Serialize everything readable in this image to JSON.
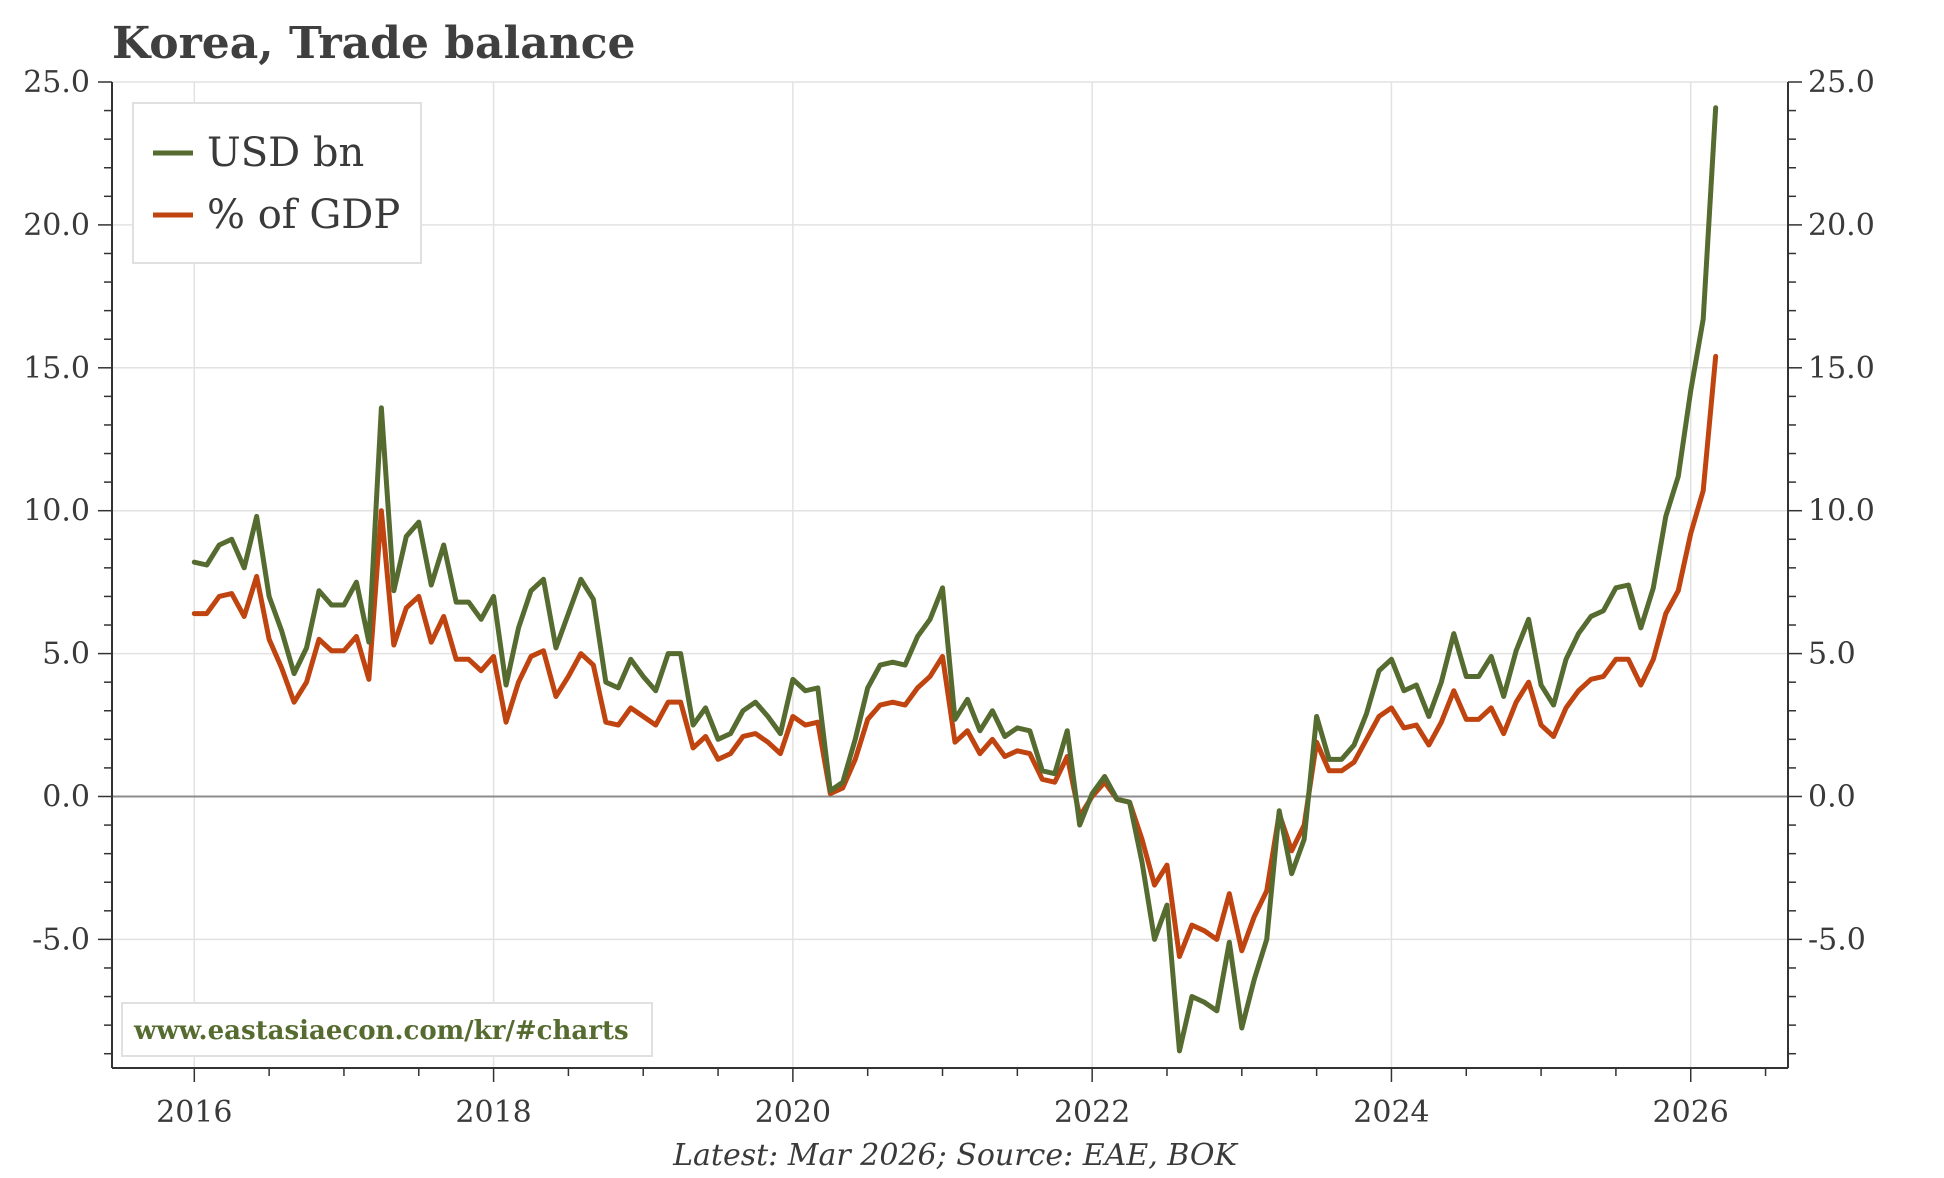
{
  "chart_data": {
    "type": "line",
    "title": "Korea, Trade balance",
    "footnote": "Latest: Mar 2026; Source: EAE, BOK",
    "watermark": "www.eastasiaecon.com/kr/#charts",
    "xlabel": "",
    "ylabel": "",
    "ylim": [
      -9.5,
      25.0
    ],
    "xlim": [
      2015.45,
      2026.65
    ],
    "grid": true,
    "legend_position": "top-left",
    "x_tick_labels": [
      "2016",
      "2018",
      "2020",
      "2022",
      "2024",
      "2026"
    ],
    "x_ticks": [
      2016,
      2018,
      2020,
      2022,
      2024,
      2026
    ],
    "y_ticks": [
      -5,
      0,
      5,
      10,
      15,
      20,
      25
    ],
    "y_tick_labels": [
      "-5.0",
      "0.0",
      "5.0",
      "10.0",
      "15.0",
      "20.0",
      "25.0"
    ],
    "x_start": 2016.0,
    "x_step_months": 1,
    "colors": {
      "usd": "#556b2f",
      "gdp": "#c0440f",
      "zero_line": "#8c8c8c",
      "grid": "#e2e2e2",
      "axis": "#333333"
    },
    "series": [
      {
        "name": "USD bn",
        "key": "usd",
        "values": [
          8.2,
          8.1,
          8.8,
          9.0,
          8.0,
          9.8,
          7.0,
          5.8,
          4.3,
          5.2,
          7.2,
          6.7,
          6.7,
          7.5,
          5.4,
          13.6,
          7.2,
          9.1,
          9.6,
          7.4,
          8.8,
          6.8,
          6.8,
          6.2,
          7.0,
          3.9,
          5.9,
          7.2,
          7.6,
          5.2,
          6.4,
          7.6,
          6.9,
          4.0,
          3.8,
          4.8,
          4.2,
          3.7,
          5.0,
          5.0,
          2.5,
          3.1,
          2.0,
          2.2,
          3.0,
          3.3,
          2.8,
          2.2,
          4.1,
          3.7,
          3.8,
          0.2,
          0.5,
          2.0,
          3.8,
          4.6,
          4.7,
          4.6,
          5.6,
          6.2,
          7.3,
          2.7,
          3.4,
          2.3,
          3.0,
          2.1,
          2.4,
          2.3,
          0.9,
          0.8,
          2.3,
          -1.0,
          0.1,
          0.7,
          -0.1,
          -0.2,
          -2.3,
          -5.0,
          -3.8,
          -8.9,
          -7.0,
          -7.2,
          -7.5,
          -5.1,
          -8.1,
          -6.4,
          -5.0,
          -0.5,
          -2.7,
          -1.5,
          2.8,
          1.3,
          1.3,
          1.8,
          2.9,
          4.4,
          4.8,
          3.7,
          3.9,
          2.8,
          4.0,
          5.7,
          4.2,
          4.2,
          4.9,
          3.5,
          5.1,
          6.2,
          3.9,
          3.2,
          4.8,
          5.7,
          6.3,
          6.5,
          7.3,
          7.4,
          5.9,
          7.3,
          9.8,
          11.2,
          14.2,
          16.7,
          24.1
        ]
      },
      {
        "name": "% of GDP",
        "key": "gdp",
        "values": [
          6.4,
          6.4,
          7.0,
          7.1,
          6.3,
          7.7,
          5.5,
          4.5,
          3.3,
          4.0,
          5.5,
          5.1,
          5.1,
          5.6,
          4.1,
          10.0,
          5.3,
          6.6,
          7.0,
          5.4,
          6.3,
          4.8,
          4.8,
          4.4,
          4.9,
          2.6,
          4.0,
          4.9,
          5.1,
          3.5,
          4.2,
          5.0,
          4.6,
          2.6,
          2.5,
          3.1,
          2.8,
          2.5,
          3.3,
          3.3,
          1.7,
          2.1,
          1.3,
          1.5,
          2.1,
          2.2,
          1.9,
          1.5,
          2.8,
          2.5,
          2.6,
          0.1,
          0.3,
          1.3,
          2.7,
          3.2,
          3.3,
          3.2,
          3.8,
          4.2,
          4.9,
          1.9,
          2.3,
          1.5,
          2.0,
          1.4,
          1.6,
          1.5,
          0.6,
          0.5,
          1.4,
          -0.7,
          0.0,
          0.5,
          -0.1,
          -0.2,
          -1.5,
          -3.1,
          -2.4,
          -5.6,
          -4.5,
          -4.7,
          -5.0,
          -3.4,
          -5.4,
          -4.2,
          -3.3,
          -0.6,
          -1.9,
          -1.0,
          1.9,
          0.9,
          0.9,
          1.2,
          2.0,
          2.8,
          3.1,
          2.4,
          2.5,
          1.8,
          2.6,
          3.7,
          2.7,
          2.7,
          3.1,
          2.2,
          3.3,
          4.0,
          2.5,
          2.1,
          3.1,
          3.7,
          4.1,
          4.2,
          4.8,
          4.8,
          3.9,
          4.8,
          6.4,
          7.2,
          9.2,
          10.7,
          15.4
        ]
      }
    ]
  }
}
